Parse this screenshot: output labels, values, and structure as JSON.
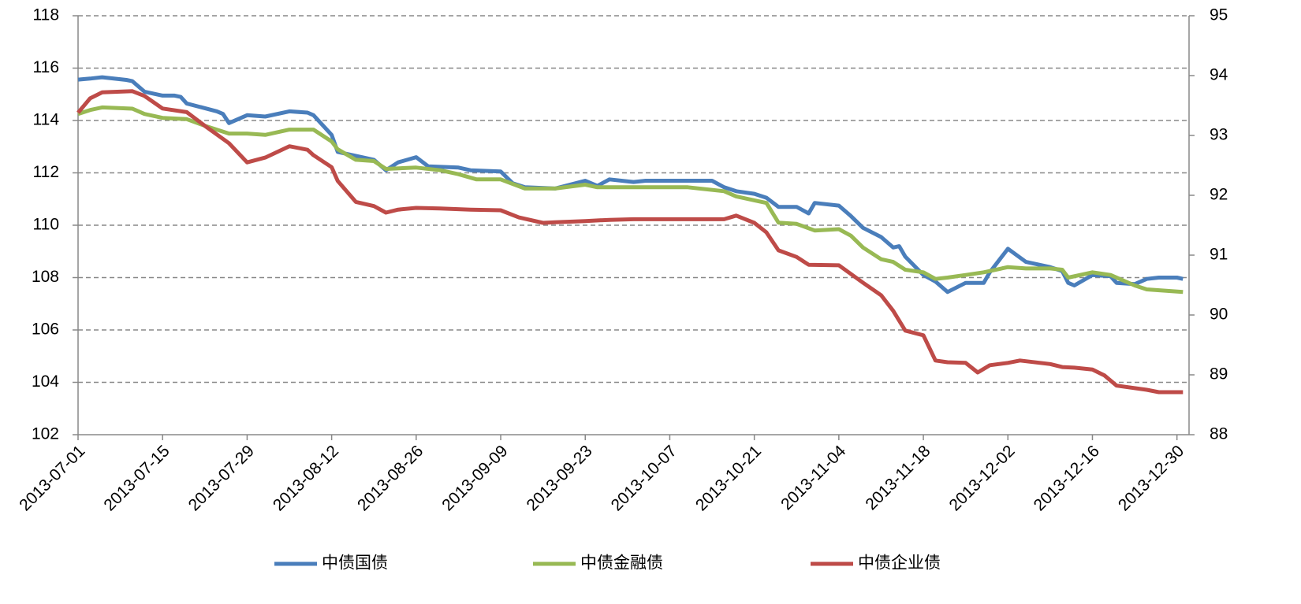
{
  "chart_data": {
    "type": "line",
    "xlim": [
      "2013-07-01",
      "2014-01-01"
    ],
    "xticks": [
      "2013-07-01",
      "2013-07-15",
      "2013-07-29",
      "2013-08-12",
      "2013-08-26",
      "2013-09-09",
      "2013-09-23",
      "2013-10-07",
      "2013-10-21",
      "2013-11-04",
      "2013-11-18",
      "2013-12-02",
      "2013-12-16",
      "2013-12-30"
    ],
    "ylim": [
      102,
      118
    ],
    "yticks": [
      102,
      104,
      106,
      108,
      110,
      112,
      114,
      116,
      118
    ],
    "y2lim": [
      88,
      95
    ],
    "y2ticks": [
      88,
      89,
      90,
      91,
      92,
      93,
      94,
      95
    ],
    "grid": true,
    "legend": "bottom",
    "series": [
      {
        "name": "中债国债",
        "color": "#4a7ebb",
        "x": [
          "2013-07-01",
          "2013-07-03",
          "2013-07-05",
          "2013-07-09",
          "2013-07-10",
          "2013-07-12",
          "2013-07-15",
          "2013-07-17",
          "2013-07-18",
          "2013-07-19",
          "2013-07-24",
          "2013-07-25",
          "2013-07-26",
          "2013-07-29",
          "2013-08-01",
          "2013-08-05",
          "2013-08-08",
          "2013-08-09",
          "2013-08-12",
          "2013-08-13",
          "2013-08-16",
          "2013-08-19",
          "2013-08-21",
          "2013-08-23",
          "2013-08-26",
          "2013-08-28",
          "2013-09-02",
          "2013-09-04",
          "2013-09-09",
          "2013-09-11",
          "2013-09-13",
          "2013-09-18",
          "2013-09-23",
          "2013-09-25",
          "2013-09-27",
          "2013-10-01",
          "2013-10-03",
          "2013-10-10",
          "2013-10-14",
          "2013-10-16",
          "2013-10-18",
          "2013-10-21",
          "2013-10-23",
          "2013-10-25",
          "2013-10-28",
          "2013-10-30",
          "2013-10-31",
          "2013-11-04",
          "2013-11-06",
          "2013-11-08",
          "2013-11-11",
          "2013-11-13",
          "2013-11-14",
          "2013-11-15",
          "2013-11-18",
          "2013-11-20",
          "2013-11-22",
          "2013-11-25",
          "2013-11-28",
          "2013-11-29",
          "2013-12-02",
          "2013-12-05",
          "2013-12-09",
          "2013-12-11",
          "2013-12-12",
          "2013-12-13",
          "2013-12-16",
          "2013-12-19",
          "2013-12-20",
          "2013-12-23",
          "2013-12-25",
          "2013-12-27",
          "2013-12-30",
          "2013-12-31"
        ],
        "values": [
          115.56,
          115.6,
          115.65,
          115.55,
          115.5,
          115.1,
          114.95,
          114.95,
          114.9,
          114.65,
          114.35,
          114.25,
          113.9,
          114.2,
          114.15,
          114.35,
          114.3,
          114.2,
          113.45,
          112.8,
          112.65,
          112.5,
          112.1,
          112.4,
          112.6,
          112.25,
          112.2,
          112.1,
          112.05,
          111.6,
          111.45,
          111.4,
          111.7,
          111.5,
          111.75,
          111.65,
          111.7,
          111.7,
          111.7,
          111.45,
          111.3,
          111.2,
          111.05,
          110.7,
          110.7,
          110.45,
          110.85,
          110.75,
          110.35,
          109.9,
          109.55,
          109.15,
          109.2,
          108.8,
          108.1,
          107.85,
          107.45,
          107.8,
          107.8,
          108.2,
          109.1,
          108.6,
          108.4,
          108.25,
          107.8,
          107.7,
          108.1,
          108.05,
          107.8,
          107.75,
          107.95,
          108.0,
          108.0,
          107.95
        ]
      },
      {
        "name": "中债金融债",
        "color": "#98b954",
        "x": [
          "2013-07-01",
          "2013-07-03",
          "2013-07-05",
          "2013-07-10",
          "2013-07-12",
          "2013-07-15",
          "2013-07-19",
          "2013-07-22",
          "2013-07-26",
          "2013-07-29",
          "2013-08-01",
          "2013-08-05",
          "2013-08-09",
          "2013-08-12",
          "2013-08-13",
          "2013-08-16",
          "2013-08-19",
          "2013-08-21",
          "2013-08-26",
          "2013-08-30",
          "2013-09-02",
          "2013-09-05",
          "2013-09-09",
          "2013-09-13",
          "2013-09-18",
          "2013-09-23",
          "2013-09-25",
          "2013-10-01",
          "2013-10-10",
          "2013-10-16",
          "2013-10-18",
          "2013-10-21",
          "2013-10-23",
          "2013-10-25",
          "2013-10-28",
          "2013-10-31",
          "2013-11-04",
          "2013-11-06",
          "2013-11-08",
          "2013-11-11",
          "2013-11-13",
          "2013-11-15",
          "2013-11-18",
          "2013-11-20",
          "2013-11-22",
          "2013-11-25",
          "2013-11-28",
          "2013-12-02",
          "2013-12-05",
          "2013-12-09",
          "2013-12-11",
          "2013-12-12",
          "2013-12-16",
          "2013-12-19",
          "2013-12-23",
          "2013-12-25",
          "2013-12-31"
        ],
        "values": [
          114.25,
          114.4,
          114.5,
          114.45,
          114.25,
          114.1,
          114.05,
          113.8,
          113.5,
          113.5,
          113.45,
          113.65,
          113.65,
          113.2,
          112.9,
          112.5,
          112.45,
          112.15,
          112.2,
          112.1,
          111.95,
          111.75,
          111.75,
          111.4,
          111.4,
          111.55,
          111.45,
          111.45,
          111.45,
          111.3,
          111.1,
          110.95,
          110.85,
          110.1,
          110.05,
          109.8,
          109.85,
          109.6,
          109.15,
          108.7,
          108.6,
          108.3,
          108.2,
          107.95,
          108.0,
          108.1,
          108.2,
          108.4,
          108.35,
          108.35,
          108.3,
          108.0,
          108.2,
          108.1,
          107.7,
          107.55,
          107.45
        ]
      },
      {
        "name": "中债企业债",
        "color": "#be4b48",
        "axis": "y2",
        "x": [
          "2013-07-01",
          "2013-07-03",
          "2013-07-05",
          "2013-07-10",
          "2013-07-12",
          "2013-07-15",
          "2013-07-19",
          "2013-07-22",
          "2013-07-26",
          "2013-07-29",
          "2013-08-01",
          "2013-08-05",
          "2013-08-08",
          "2013-08-09",
          "2013-08-12",
          "2013-08-13",
          "2013-08-16",
          "2013-08-19",
          "2013-08-21",
          "2013-08-23",
          "2013-08-26",
          "2013-08-30",
          "2013-09-04",
          "2013-09-09",
          "2013-09-12",
          "2013-09-16",
          "2013-09-18",
          "2013-09-23",
          "2013-09-27",
          "2013-10-01",
          "2013-10-16",
          "2013-10-18",
          "2013-10-21",
          "2013-10-23",
          "2013-10-25",
          "2013-10-28",
          "2013-10-30",
          "2013-11-04",
          "2013-11-08",
          "2013-11-11",
          "2013-11-13",
          "2013-11-15",
          "2013-11-18",
          "2013-11-20",
          "2013-11-22",
          "2013-11-25",
          "2013-11-27",
          "2013-11-29",
          "2013-12-02",
          "2013-12-04",
          "2013-12-09",
          "2013-12-11",
          "2013-12-13",
          "2013-12-16",
          "2013-12-18",
          "2013-12-20",
          "2013-12-25",
          "2013-12-27",
          "2013-12-31"
        ],
        "values": [
          93.38,
          93.62,
          93.72,
          93.74,
          93.66,
          93.45,
          93.39,
          93.16,
          92.87,
          92.55,
          92.63,
          92.82,
          92.76,
          92.67,
          92.47,
          92.24,
          91.89,
          91.82,
          91.71,
          91.76,
          91.79,
          91.78,
          91.76,
          91.75,
          91.63,
          91.54,
          91.55,
          91.57,
          91.59,
          91.6,
          91.6,
          91.66,
          91.54,
          91.38,
          91.08,
          90.97,
          90.84,
          90.83,
          90.54,
          90.33,
          90.07,
          89.74,
          89.66,
          89.24,
          89.21,
          89.2,
          89.04,
          89.16,
          89.2,
          89.24,
          89.18,
          89.13,
          89.12,
          89.09,
          88.99,
          88.82,
          88.75,
          88.71,
          88.71
        ]
      }
    ]
  }
}
